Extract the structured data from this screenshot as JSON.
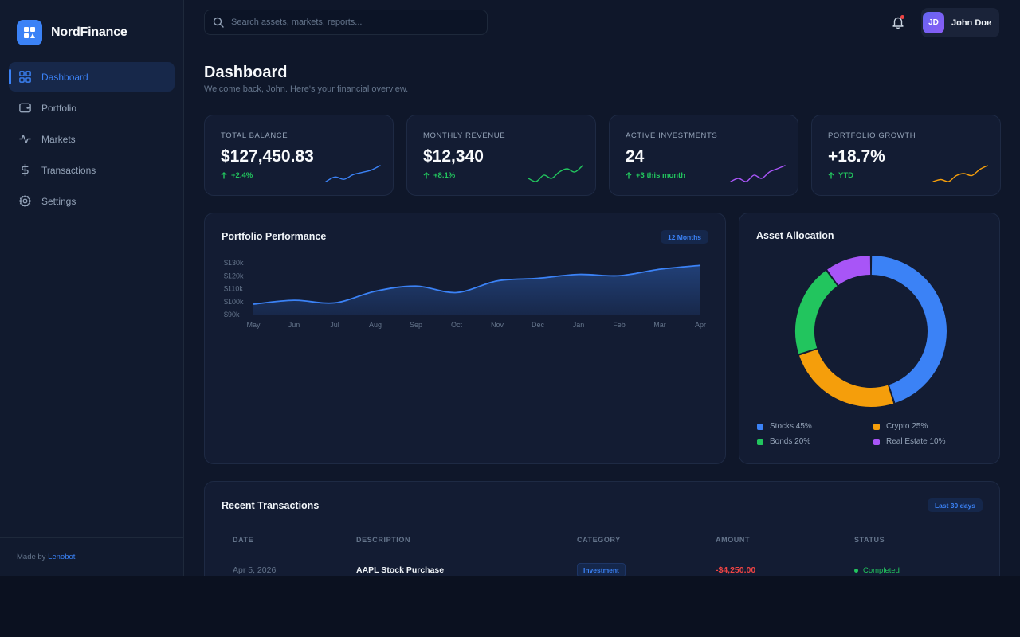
{
  "brand": {
    "name": "NordFinance"
  },
  "sidebar": {
    "items": [
      {
        "label": "Dashboard",
        "icon": "grid-icon",
        "active": true
      },
      {
        "label": "Portfolio",
        "icon": "wallet-icon",
        "active": false
      },
      {
        "label": "Markets",
        "icon": "pulse-icon",
        "active": false
      },
      {
        "label": "Transactions",
        "icon": "dollar-icon",
        "active": false
      },
      {
        "label": "Settings",
        "icon": "gear-icon",
        "active": false
      }
    ],
    "footer_prefix": "Made by",
    "footer_link": "Lenobot"
  },
  "search": {
    "placeholder": "Search assets, markets, reports..."
  },
  "user": {
    "initials": "JD",
    "name": "John Doe"
  },
  "header": {
    "title": "Dashboard",
    "subtitle": "Welcome back, John. Here's your financial overview."
  },
  "stats": [
    {
      "label": "Total Balance",
      "value": "$127,450.83",
      "delta": "+2.4%",
      "color": "#3b82f6",
      "spark": [
        3,
        5,
        4,
        6,
        7,
        8,
        10
      ]
    },
    {
      "label": "Monthly Revenue",
      "value": "$12,340",
      "delta": "+8.1%",
      "color": "#22c55e",
      "spark": [
        4,
        3,
        5,
        4,
        6,
        7,
        6,
        8
      ]
    },
    {
      "label": "Active Investments",
      "value": "24",
      "delta": "+3 this month",
      "color": "#a855f7",
      "spark": [
        3,
        4,
        3,
        5,
        4,
        6,
        7,
        8
      ]
    },
    {
      "label": "Portfolio Growth",
      "value": "+18.7%",
      "delta": "YTD",
      "color": "#f59e0b",
      "spark": [
        2,
        3,
        2,
        5,
        6,
        5,
        8,
        10
      ]
    }
  ],
  "performance": {
    "title": "Portfolio Performance",
    "range_label": "12 Months"
  },
  "chart_data": [
    {
      "type": "area",
      "title": "Portfolio Performance",
      "categories": [
        "May",
        "Jun",
        "Jul",
        "Aug",
        "Sep",
        "Oct",
        "Nov",
        "Dec",
        "Jan",
        "Feb",
        "Mar",
        "Apr"
      ],
      "values": [
        98,
        101,
        99,
        108,
        112,
        107,
        116,
        118,
        121,
        120,
        125,
        128
      ],
      "yticks": [
        "$130k",
        "$120k",
        "$110k",
        "$100k",
        "$90k"
      ],
      "ylim": [
        90,
        130
      ],
      "color": "#3b82f6"
    },
    {
      "type": "pie",
      "title": "Asset Allocation",
      "slices": [
        {
          "label": "Stocks",
          "value": 45,
          "color": "#3b82f6"
        },
        {
          "label": "Crypto",
          "value": 25,
          "color": "#f59e0b"
        },
        {
          "label": "Bonds",
          "value": 20,
          "color": "#22c55e"
        },
        {
          "label": "Real Estate",
          "value": 10,
          "color": "#a855f7"
        }
      ]
    }
  ],
  "allocation": {
    "title": "Asset Allocation",
    "legend": [
      "Stocks 45%",
      "Crypto 25%",
      "Bonds 20%",
      "Real Estate 10%"
    ]
  },
  "transactions": {
    "title": "Recent Transactions",
    "range_label": "Last 30 days",
    "columns": [
      "Date",
      "Description",
      "Category",
      "Amount",
      "Status"
    ],
    "rows": [
      {
        "date": "Apr 5, 2026",
        "description": "AAPL Stock Purchase",
        "category": "Investment",
        "amount": "-$4,250.00",
        "status": "Completed"
      }
    ]
  }
}
